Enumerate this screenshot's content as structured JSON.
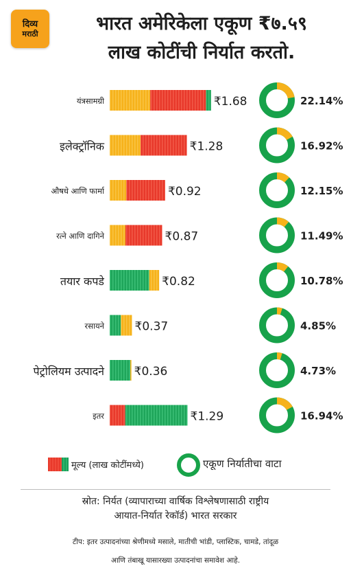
{
  "logo": {
    "line1": "दिव्य",
    "line2": "मराठी"
  },
  "title": {
    "line1": "भारत अमेरिकेला एकूण ₹७.५९",
    "line2": "लाख कोटींची निर्यात करतो."
  },
  "chart_data": {
    "type": "bar",
    "categories": [
      "यंत्रसामग्री",
      "इलेक्ट्रॉनिक",
      "औषधे आणि फार्मा",
      "रत्ने आणि दागिने",
      "तयार कपडे",
      "रसायने",
      "पेट्रोलियम उत्पादने",
      "इतर"
    ],
    "values": [
      1.68,
      1.28,
      0.92,
      0.87,
      0.82,
      0.37,
      0.36,
      1.29
    ],
    "value_labels": [
      "₹1.68",
      "₹1.28",
      "₹0.92",
      "₹0.87",
      "₹0.82",
      "₹0.37",
      "₹0.36",
      "₹1.29"
    ],
    "share_percent": [
      22.14,
      16.92,
      12.15,
      11.49,
      10.78,
      4.85,
      4.73,
      16.94
    ],
    "share_labels": [
      "22.14%",
      "16.92%",
      "12.15%",
      "11.49%",
      "10.78%",
      "4.85%",
      "4.73%",
      "16.94%"
    ],
    "bar_color_mix": [
      {
        "yellow": 0.4,
        "red": 0.55,
        "green": 0.05
      },
      {
        "yellow": 0.4,
        "red": 0.6,
        "green": 0.0
      },
      {
        "yellow": 0.3,
        "red": 0.7,
        "green": 0.0
      },
      {
        "yellow": 0.3,
        "red": 0.7,
        "green": 0.0
      },
      {
        "yellow": 0.0,
        "red": 0.0,
        "green": 0.8,
        "yellow_end": 0.2
      },
      {
        "yellow": 0.0,
        "red": 0.0,
        "green": 0.5,
        "yellow_end": 0.5
      },
      {
        "yellow": 0.0,
        "red": 0.0,
        "green": 0.95,
        "yellow_end": 0.05
      },
      {
        "yellow": 0.0,
        "red": 0.2,
        "green": 0.8,
        "yellow_end": 0.0
      }
    ],
    "legend": [
      "मूल्य (लाख कोटींमध्ये)",
      "एकूण निर्यातीचा वाटा"
    ],
    "colors": {
      "yellow": "#f6b21b",
      "red": "#e8392b",
      "green": "#1ea55a",
      "donut_green": "#17a24a",
      "donut_yellow": "#f6b21b"
    }
  },
  "legend": {
    "value_label": "मूल्य (लाख कोटींमध्ये)",
    "share_label": "एकूण निर्यातीचा वाटा"
  },
  "source": {
    "line1": "स्रोत: निर्यत (व्यापाराच्या वार्षिक विश्लेषणासाठी राष्ट्रीय",
    "line2": "आयात-निर्यात रेकॉर्ड) भारत सरकार"
  },
  "note": {
    "line1": "टीप: इतर उत्पादनांच्या श्रेणीमध्ये मसाले, मातीची भांडी, प्लास्टिक, चामडे, तांदूळ",
    "line2": "आणि तंबाखू यासारख्या उत्पादनांचा समावेश आहे."
  }
}
